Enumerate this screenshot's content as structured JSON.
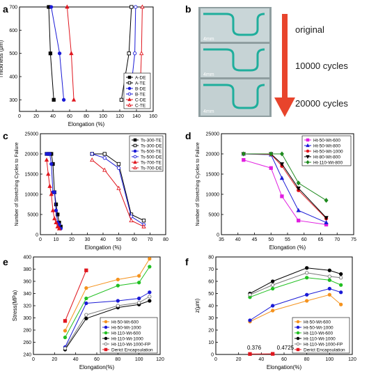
{
  "panel_b": {
    "letter": "b",
    "labels": [
      "original",
      "10000 cycles",
      "20000 cycles"
    ],
    "scale_labels": [
      "4mm",
      "4mm",
      "4mm"
    ],
    "arrow_color": "#e8442c"
  },
  "chart_data": [
    {
      "id": "a",
      "letter": "a",
      "type": "line",
      "xlabel": "Elongation (%)",
      "ylabel": "Thickness (μm)",
      "xlim": [
        0,
        160
      ],
      "ylim": [
        250,
        700
      ],
      "xticks": [
        0,
        20,
        40,
        60,
        80,
        100,
        120,
        140,
        160
      ],
      "yticks": [
        300,
        400,
        500,
        600,
        700
      ],
      "legend": "right",
      "series": [
        {
          "name": "A-DE",
          "color": "#000000",
          "marker": "square",
          "filled": true,
          "x": [
            41,
            37,
            35
          ],
          "y": [
            300,
            500,
            700
          ]
        },
        {
          "name": "A-TE",
          "color": "#000000",
          "marker": "square",
          "filled": false,
          "x": [
            122,
            131,
            134
          ],
          "y": [
            300,
            500,
            700
          ]
        },
        {
          "name": "B-DE",
          "color": "#1a1ad6",
          "marker": "circle",
          "filled": true,
          "x": [
            53,
            48,
            38
          ],
          "y": [
            300,
            500,
            700
          ]
        },
        {
          "name": "B-TE",
          "color": "#1a1ad6",
          "marker": "circle",
          "filled": false,
          "x": [
            132,
            138,
            139
          ],
          "y": [
            300,
            500,
            700
          ]
        },
        {
          "name": "C-DE",
          "color": "#e0161e",
          "marker": "triangle",
          "filled": true,
          "x": [
            65,
            62,
            57
          ],
          "y": [
            300,
            500,
            700
          ]
        },
        {
          "name": "C-TE",
          "color": "#e0161e",
          "marker": "triangle",
          "filled": false,
          "x": [
            144,
            146,
            147
          ],
          "y": [
            300,
            500,
            700
          ]
        }
      ]
    },
    {
      "id": "c",
      "letter": "c",
      "type": "line",
      "xlabel": "Elongation (%)",
      "ylabel": "Number of Stretching Cycles to Failure",
      "xlim": [
        0,
        80
      ],
      "ylim": [
        0,
        25000
      ],
      "xticks": [
        0,
        10,
        20,
        30,
        40,
        50,
        60,
        70,
        80
      ],
      "yticks": [
        0,
        5000,
        10000,
        15000,
        20000,
        25000
      ],
      "legend": "top-right",
      "series": [
        {
          "name": "Ts-300-TE",
          "color": "#000000",
          "marker": "square",
          "filled": true,
          "x": [
            4,
            5,
            6,
            7,
            8,
            9,
            10,
            11,
            12,
            13
          ],
          "y": [
            20000,
            20000,
            20000,
            20000,
            17500,
            10500,
            7500,
            5000,
            3000,
            2000
          ]
        },
        {
          "name": "Ts-300-DE",
          "color": "#000000",
          "marker": "square",
          "filled": false,
          "x": [
            33,
            41,
            50,
            58,
            66
          ],
          "y": [
            20000,
            20000,
            17500,
            5000,
            3500
          ]
        },
        {
          "name": "Ts-500-TE",
          "color": "#1a1ad6",
          "marker": "circle",
          "filled": true,
          "x": [
            4,
            5,
            6,
            7,
            8,
            9,
            10,
            11,
            12,
            13
          ],
          "y": [
            20000,
            20000,
            20000,
            17500,
            10500,
            10500,
            6000,
            3000,
            2500,
            1500
          ]
        },
        {
          "name": "Ts-500-DE",
          "color": "#1a1ad6",
          "marker": "circle",
          "filled": false,
          "x": [
            33,
            41,
            50,
            58,
            66
          ],
          "y": [
            20000,
            19000,
            16500,
            4500,
            2500
          ]
        },
        {
          "name": "Ts-700-TE",
          "color": "#e0161e",
          "marker": "triangle",
          "filled": true,
          "x": [
            4,
            5,
            6,
            7,
            8,
            9,
            10,
            11,
            12
          ],
          "y": [
            18500,
            15000,
            12000,
            10000,
            6000,
            4000,
            3000,
            2000,
            1500
          ]
        },
        {
          "name": "Ts-700-DE",
          "color": "#e0161e",
          "marker": "triangle",
          "filled": false,
          "x": [
            33,
            41,
            50,
            58,
            66
          ],
          "y": [
            18500,
            16000,
            11500,
            3500,
            2000
          ]
        }
      ]
    },
    {
      "id": "d",
      "letter": "d",
      "type": "line",
      "xlabel": "Elongation (%)",
      "ylabel": "Number of Stretching Cycles to Failure",
      "xlim": [
        35,
        75
      ],
      "ylim": [
        0,
        25000
      ],
      "xticks": [
        35,
        40,
        45,
        50,
        55,
        60,
        65,
        70,
        75
      ],
      "yticks": [
        0,
        5000,
        10000,
        15000,
        20000,
        25000
      ],
      "legend": "top-right",
      "series": [
        {
          "name": "Ht-50-Wt-600",
          "color": "#e11de0",
          "marker": "square",
          "filled": true,
          "x": [
            41.7,
            50,
            53.3,
            58.3,
            66.7
          ],
          "y": [
            18500,
            16500,
            9500,
            3500,
            2500
          ]
        },
        {
          "name": "Ht-50-Wt-800",
          "color": "#1a1ad6",
          "marker": "triangle",
          "filled": true,
          "x": [
            41.7,
            50,
            53.3,
            58.3,
            66.7
          ],
          "y": [
            20000,
            19800,
            14000,
            6000,
            3000
          ]
        },
        {
          "name": "Ht-50-Wt-1000",
          "color": "#e0161e",
          "marker": "circle",
          "filled": true,
          "x": [
            41.7,
            50,
            53.3,
            58.3,
            66.7
          ],
          "y": [
            20000,
            19900,
            17000,
            11000,
            4000
          ]
        },
        {
          "name": "Ht-80-Wt-800",
          "color": "#000000",
          "marker": "triangle-down",
          "filled": true,
          "x": [
            41.7,
            50,
            53.3,
            58.3,
            66.7
          ],
          "y": [
            20000,
            20000,
            17500,
            11500,
            4200
          ]
        },
        {
          "name": "Ht-110-Wt-800",
          "color": "#1e8a1e",
          "marker": "diamond",
          "filled": true,
          "x": [
            41.7,
            50,
            53.3,
            58.3,
            66.7
          ],
          "y": [
            20000,
            20000,
            20000,
            12800,
            8500
          ]
        }
      ]
    },
    {
      "id": "e",
      "letter": "e",
      "type": "line",
      "xlabel": "Elongation(%)",
      "ylabel": "Stress(MPa)",
      "xlim": [
        0,
        120
      ],
      "ylim": [
        240,
        400
      ],
      "xticks": [
        0,
        20,
        40,
        60,
        80,
        100,
        120
      ],
      "yticks": [
        240,
        260,
        280,
        300,
        320,
        340,
        360,
        380,
        400
      ],
      "legend": "bottom-right",
      "series": [
        {
          "name": "Ht-50-Wt-600",
          "color": "#f5931e",
          "marker": "circle",
          "filled": true,
          "x": [
            30,
            50,
            80,
            100,
            110
          ],
          "y": [
            279,
            349,
            363,
            369,
            397
          ]
        },
        {
          "name": "Ht-50-Wt-1000",
          "color": "#1a1ad6",
          "marker": "circle",
          "filled": true,
          "x": [
            30,
            50,
            80,
            100,
            110
          ],
          "y": [
            252,
            324,
            328,
            332,
            342
          ]
        },
        {
          "name": "Ht-110-Wt-600",
          "color": "#22c022",
          "marker": "circle",
          "filled": true,
          "x": [
            30,
            50,
            80,
            100,
            110
          ],
          "y": [
            268,
            332,
            353,
            358,
            384
          ]
        },
        {
          "name": "Ht-110-Wt-1000",
          "color": "#000000",
          "marker": "circle",
          "filled": true,
          "x": [
            30,
            50,
            80,
            100,
            110
          ],
          "y": [
            248,
            299,
            317,
            322,
            328
          ]
        },
        {
          "name": "Ht-110-Wt-1000-FP",
          "color": "#777777",
          "marker": "circle",
          "filled": false,
          "x": [
            30,
            50,
            80,
            100,
            110
          ],
          "y": [
            250,
            305,
            320,
            325,
            335
          ]
        },
        {
          "name": "Derict Encapsulation",
          "color": "#e0161e",
          "marker": "square",
          "filled": true,
          "x": [
            30,
            50
          ],
          "y": [
            295,
            378
          ]
        }
      ]
    },
    {
      "id": "f",
      "letter": "f",
      "type": "line",
      "xlabel": "Elongation(%)",
      "ylabel": "z(μm)",
      "xlim": [
        0,
        120
      ],
      "ylim": [
        0,
        80
      ],
      "xticks": [
        0,
        20,
        40,
        60,
        80,
        100,
        120
      ],
      "yticks": [
        0,
        10,
        20,
        30,
        40,
        50,
        60,
        70,
        80
      ],
      "legend": "bottom-right",
      "annotations": [
        "0.376",
        "0.4725"
      ],
      "series": [
        {
          "name": "Ht-50-Wt-600",
          "color": "#f5931e",
          "marker": "circle",
          "filled": true,
          "x": [
            30,
            50,
            80,
            100,
            110
          ],
          "y": [
            27,
            36,
            44,
            49,
            41
          ]
        },
        {
          "name": "Ht-50-Wt-1000",
          "color": "#1a1ad6",
          "marker": "circle",
          "filled": true,
          "x": [
            30,
            50,
            80,
            100,
            110
          ],
          "y": [
            28,
            40,
            49,
            54,
            51
          ]
        },
        {
          "name": "Ht-110-Wt-600",
          "color": "#22c022",
          "marker": "circle",
          "filled": true,
          "x": [
            30,
            50,
            80,
            100,
            110
          ],
          "y": [
            47,
            54,
            63,
            61,
            57
          ]
        },
        {
          "name": "Ht-110-Wt-1000",
          "color": "#000000",
          "marker": "circle",
          "filled": true,
          "x": [
            30,
            50,
            80,
            100,
            110
          ],
          "y": [
            50,
            60,
            71,
            69,
            66
          ]
        },
        {
          "name": "Ht-110-Wt-1000-FP",
          "color": "#777777",
          "marker": "circle",
          "filled": false,
          "x": [
            30,
            50,
            80,
            100,
            110
          ],
          "y": [
            49,
            57,
            67,
            64,
            63
          ]
        },
        {
          "name": "Derict Encapsulation",
          "color": "#e0161e",
          "marker": "square",
          "filled": true,
          "x": [
            30,
            50
          ],
          "y": [
            0.376,
            0.4725
          ]
        }
      ]
    }
  ]
}
